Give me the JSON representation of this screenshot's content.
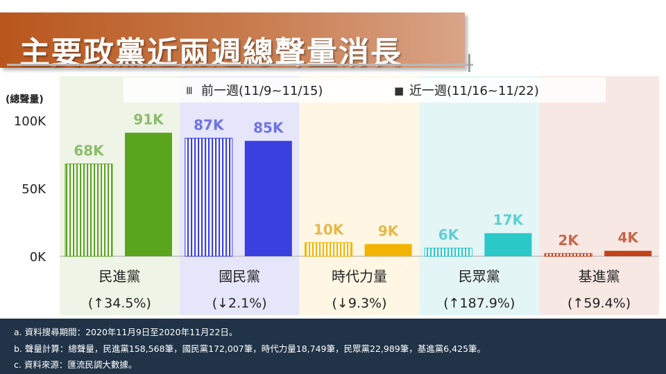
{
  "title": "主要政黨近兩週總聲量消長",
  "colors": {
    "title_banner": "#c06a34",
    "footer_bg": "#203347",
    "dpp": "#5aa51e",
    "kmt": "#3a3fe0",
    "tpp_time": "#f2b400",
    "tpp": "#2bc8c8",
    "sp": "#c4421a"
  },
  "chart_data": {
    "type": "bar",
    "ylabel": "(總聲量)",
    "ylim": [
      0,
      100000
    ],
    "ytick_labels": [
      "0K",
      "50K",
      "100K"
    ],
    "legend_placement": "top",
    "categories": [
      "民進黨",
      "國民黨",
      "時代力量",
      "民眾黨",
      "基進黨"
    ],
    "changes": [
      "(↑34.5%)",
      "(↓2.1%)",
      "(↓9.3%)",
      "(↑187.9%)",
      "(↑59.4%)"
    ],
    "series": [
      {
        "name": "前一週(11/9~11/15)",
        "style": "striped",
        "values": [
          68000,
          87000,
          10000,
          6000,
          2000
        ],
        "labels": [
          "68K",
          "87K",
          "10K",
          "6K",
          "2K"
        ]
      },
      {
        "name": "近一週(11/16~11/22)",
        "style": "solid",
        "values": [
          91000,
          85000,
          9000,
          17000,
          4000
        ],
        "labels": [
          "91K",
          "85K",
          "9K",
          "17K",
          "4K"
        ]
      }
    ],
    "category_colors": [
      "#5aa51e",
      "#3a3fe0",
      "#f2b400",
      "#2bc8c8",
      "#c4421a"
    ],
    "label_colors": [
      "#8cbc6a",
      "#6e73e6",
      "#e6b84a",
      "#5ccfd3",
      "#c7674a"
    ],
    "panel_colors": [
      "#eef5e6",
      "#e6e6fa",
      "#fff7e4",
      "#e4f5f6",
      "#f7e8e4"
    ],
    "legend_icons": [
      "Ⅲ",
      "■"
    ]
  },
  "footer": {
    "line_a": "a. 資料搜尋期間：2020年11月9日至2020年11月22日。",
    "line_b": "b. 聲量計算：總聲量，民進黨158,568筆，國民黨172,007筆，時代力量18,749筆，民眾黨22,989筆，基進黨6,425筆。",
    "line_c": "c. 資料來源：匯流民調大數據。"
  }
}
